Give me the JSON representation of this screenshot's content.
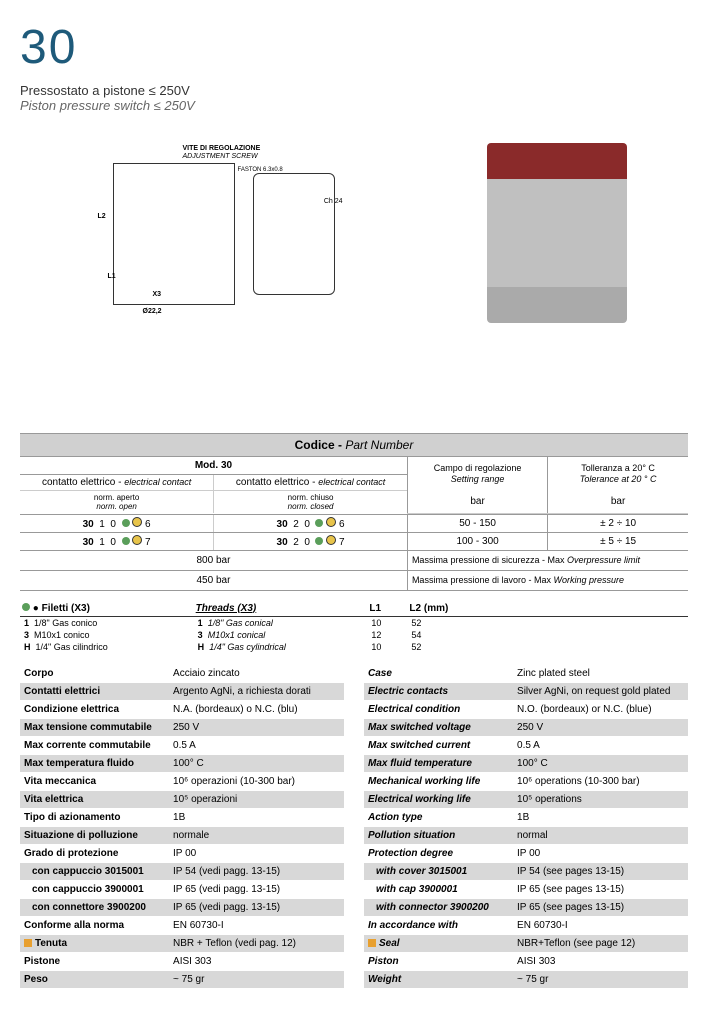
{
  "header": {
    "num": "30",
    "title_it": "Pressostato a pistone ≤ 250V",
    "title_en": "Piston pressure switch ≤ 250V"
  },
  "drawing": {
    "adj_screw_it": "VITE DI REGOLAZIONE",
    "adj_screw_en": "ADJUSTMENT SCREW",
    "faston": "FASTON 6.3x0.8",
    "ch": "Ch 24",
    "l2": "L2",
    "l1": "L1",
    "x3": "X3",
    "dia": "Ø22,2"
  },
  "pn": {
    "header_it": "Codice -",
    "header_en": "Part Number",
    "mod": "Mod. 30",
    "col_left_it": "contatto elettrico -",
    "col_left_en": "electrical contact",
    "col_right_it": "contatto elettrico -",
    "col_right_en": "electrical contact",
    "norm_open_it": "norm. aperto",
    "norm_open_en": "norm. open",
    "norm_closed_it": "norm. chiuso",
    "norm_closed_en": "norm. closed",
    "campo_it": "Campo di regolazione",
    "campo_en": "Setting range",
    "bar": "bar",
    "tol_it": "Tolleranza a 20° C",
    "tol_en": "Tolerance at 20 ° C",
    "rows": [
      {
        "c1": "30",
        "c2": "1",
        "c3": "0",
        "c4": "●",
        "c5": "1",
        "c6": "6",
        "d1": "30",
        "d2": "2",
        "d3": "0",
        "d4": "●",
        "d5": "1",
        "d6": "6",
        "range": "50 - 150",
        "tol": "± 2 ÷ 10"
      },
      {
        "c1": "30",
        "c2": "1",
        "c3": "0",
        "c4": "●",
        "c5": "1",
        "c6": "7",
        "d1": "30",
        "d2": "2",
        "d3": "0",
        "d4": "●",
        "d5": "1",
        "d6": "7",
        "range": "100 - 300",
        "tol": "± 5 ÷ 15"
      }
    ],
    "bar800": "800 bar",
    "max_over_it": "Massima pressione di sicurezza - Max",
    "max_over_en": "Overpressure limit",
    "bar450": "450 bar",
    "max_work_it": "Massima pressione di lavoro - Max",
    "max_work_en": "Working pressure"
  },
  "threads": {
    "head": [
      "● Filetti  (X3)",
      "Threads (X3)",
      "L1",
      "L2 (mm)"
    ],
    "rows": [
      [
        "1",
        "1/8\" Gas conico",
        "1",
        "1/8\" Gas conical",
        "10",
        "52"
      ],
      [
        "3",
        "M10x1 conico",
        "3",
        "M10x1 conical",
        "12",
        "54"
      ],
      [
        "H",
        "1/4\" Gas cilindrico",
        "H",
        "1/4\" Gas cylindrical",
        "10",
        "52"
      ]
    ]
  },
  "specs_it": [
    {
      "k": "Corpo",
      "v": "Acciaio zincato"
    },
    {
      "k": "Contatti elettrici",
      "v": "Argento AgNi, a richiesta dorati"
    },
    {
      "k": "Condizione elettrica",
      "v": "N.A. (bordeaux) o N.C. (blu)"
    },
    {
      "k": "Max tensione commutabile",
      "v": "250 V"
    },
    {
      "k": "Max corrente commutabile",
      "v": "0.5 A"
    },
    {
      "k": "Max temperatura fluido",
      "v": "100° C"
    },
    {
      "k": "Vita meccanica",
      "v": "10⁶ operazioni (10-300 bar)"
    },
    {
      "k": "Vita elettrica",
      "v": "10⁵ operazioni"
    },
    {
      "k": "Tipo di azionamento",
      "v": "1B"
    },
    {
      "k": "Situazione di polluzione",
      "v": "normale"
    },
    {
      "k": "Grado di protezione",
      "v": "IP 00"
    },
    {
      "k": "con cappuccio 3015001",
      "v": "IP 54 (vedi pagg. 13-15)",
      "indent": true
    },
    {
      "k": "con cappuccio 3900001",
      "v": "IP 65 (vedi pagg. 13-15)",
      "indent": true
    },
    {
      "k": "con connettore 3900200",
      "v": "IP 65 (vedi pagg. 13-15)",
      "indent": true
    },
    {
      "k": "Conforme alla norma",
      "v": "EN 60730-I"
    },
    {
      "k": "Tenuta",
      "v": "NBR + Teflon (vedi pag. 12)",
      "mark": true
    },
    {
      "k": "Pistone",
      "v": "AISI 303"
    },
    {
      "k": "Peso",
      "v": "~ 75 gr"
    }
  ],
  "specs_en": [
    {
      "k": "Case",
      "v": "Zinc plated steel"
    },
    {
      "k": "Electric contacts",
      "v": "Silver AgNi, on request gold plated"
    },
    {
      "k": "Electrical condition",
      "v": "N.O. (bordeaux) or N.C. (blue)"
    },
    {
      "k": "Max switched voltage",
      "v": "250 V"
    },
    {
      "k": "Max switched current",
      "v": "0.5 A"
    },
    {
      "k": "Max fluid temperature",
      "v": "100° C"
    },
    {
      "k": "Mechanical working life",
      "v": "10⁶ operations (10-300 bar)"
    },
    {
      "k": "Electrical working life",
      "v": "10⁵ operations"
    },
    {
      "k": "Action type",
      "v": "1B"
    },
    {
      "k": "Pollution situation",
      "v": "normal"
    },
    {
      "k": "Protection degree",
      "v": "IP 00"
    },
    {
      "k": "with cover 3015001",
      "v": "IP 54 (see pages 13-15)",
      "indent": true
    },
    {
      "k": "with cap 3900001",
      "v": "IP 65 (see pages 13-15)",
      "indent": true
    },
    {
      "k": "with connector 3900200",
      "v": "IP 65 (see pages 13-15)",
      "indent": true
    },
    {
      "k": "In accordance with",
      "v": "EN 60730-I"
    },
    {
      "k": "Seal",
      "v": "NBR+Teflon (see page 12)",
      "mark": true
    },
    {
      "k": "Piston",
      "v": "AISI 303"
    },
    {
      "k": "Weight",
      "v": "~ 75 gr"
    }
  ],
  "alt_rows": [
    1,
    3,
    5,
    7,
    9,
    11,
    13,
    15,
    17
  ]
}
